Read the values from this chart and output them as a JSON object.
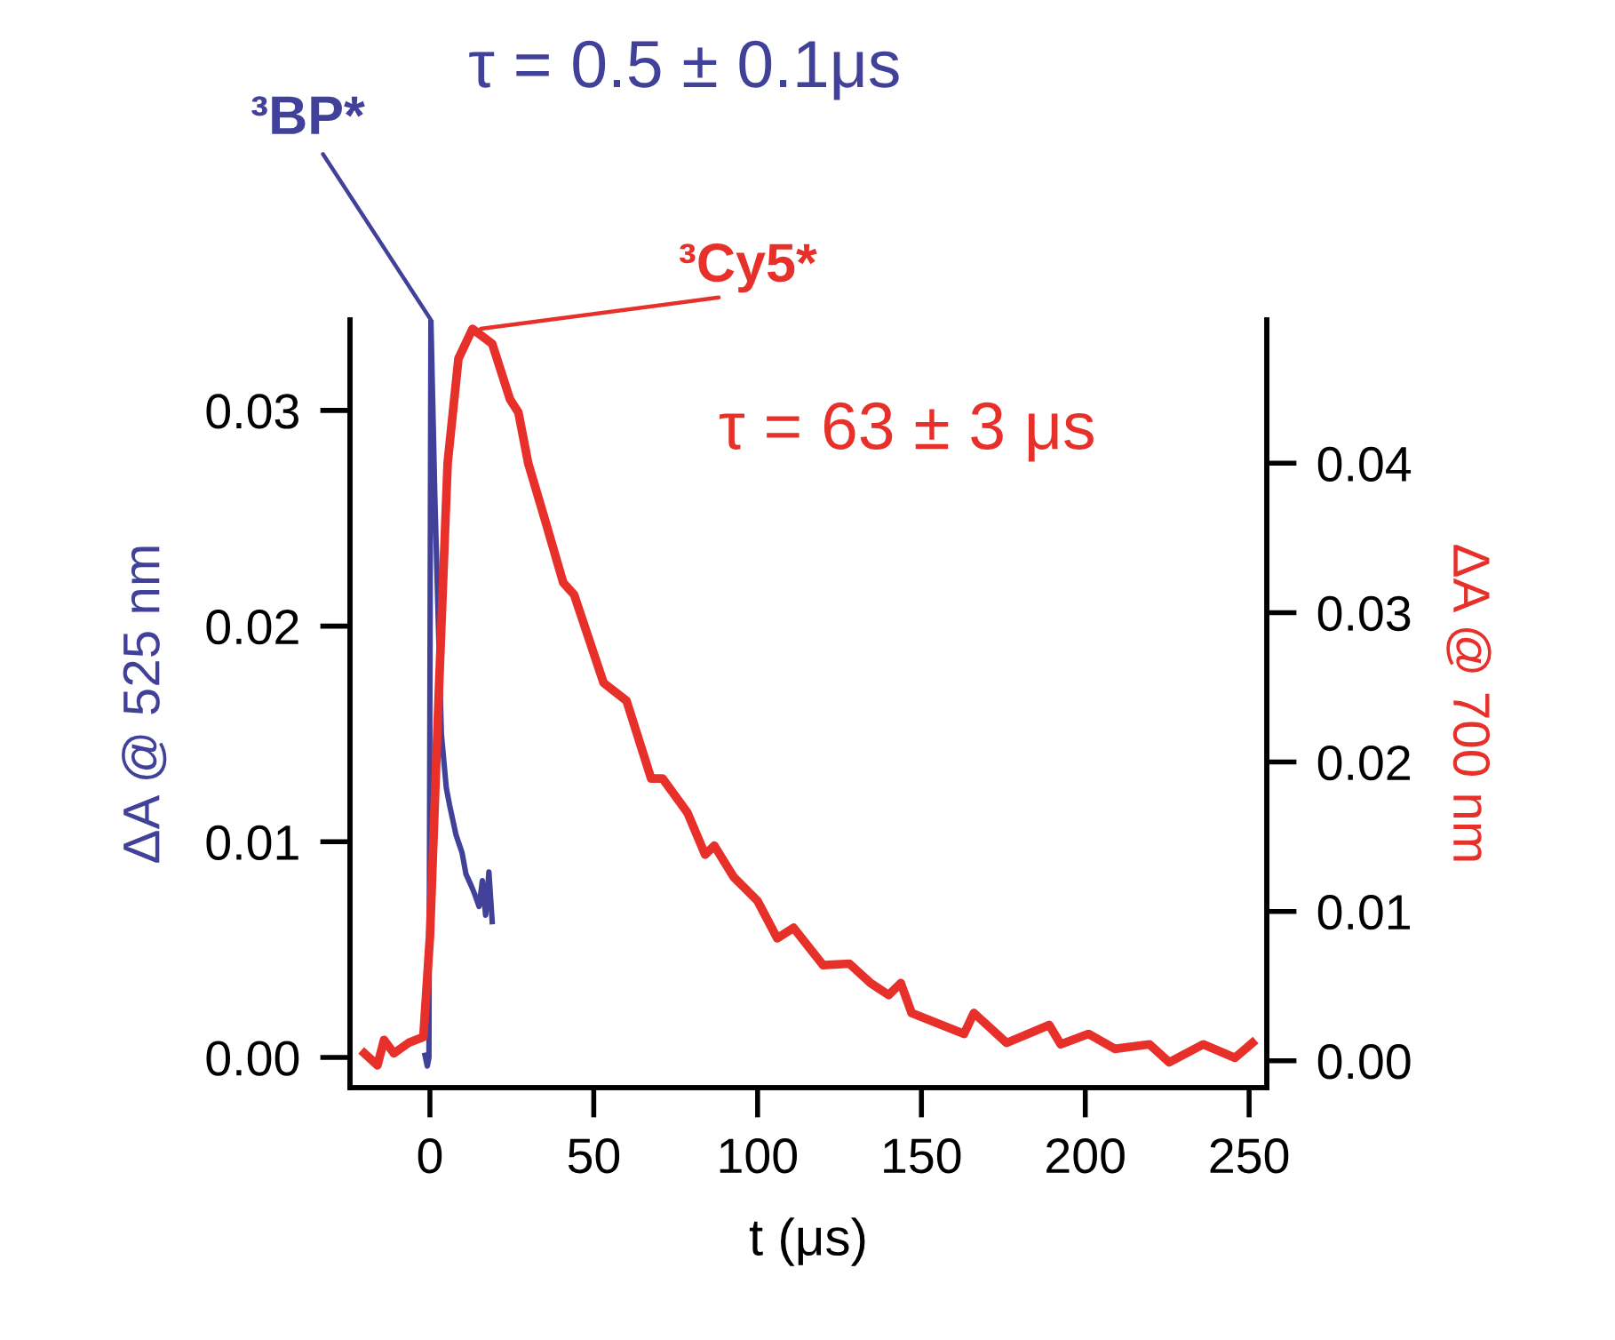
{
  "chart_data": {
    "type": "line",
    "xlabel": "t (μs)",
    "ylabel": "ΔA @ 525 nm",
    "y2label": "ΔA @ 700 nm",
    "annotations": [
      "τ = 0.5 ± 0.1μs",
      "τ = 63 ± 3 μs"
    ],
    "xlim": [
      -24.4,
      255.4
    ],
    "xticks": [
      0,
      50,
      100,
      150,
      200,
      250
    ],
    "ylim": [
      -0.0014,
      0.0342
    ],
    "yticks": [
      {
        "value": 0,
        "label": "0.00"
      },
      {
        "value": 0.01,
        "label": "0.01"
      },
      {
        "value": 0.02,
        "label": "0.02"
      },
      {
        "value": 0.03,
        "label": "0.03"
      }
    ],
    "y2lim": [
      -0.0018,
      0.0496
    ],
    "y2ticks": [
      {
        "value": 0,
        "label": "0.00"
      },
      {
        "value": 0.01,
        "label": "0.01"
      },
      {
        "value": 0.02,
        "label": "0.02"
      },
      {
        "value": 0.03,
        "label": "0.03"
      },
      {
        "value": 0.04,
        "label": "0.04"
      }
    ],
    "grid": false,
    "legend": false,
    "marker": "none",
    "line_style": "solid",
    "series": [
      {
        "name": "³BP*",
        "color": "#41419a",
        "x": [
          -1.5,
          -0.8,
          -0.3,
          0.3,
          1.5,
          2.7,
          3.5,
          5,
          6,
          8,
          9.8,
          11,
          12.5,
          13.6,
          15,
          16,
          17,
          18,
          19
        ],
        "values": [
          0.0001,
          -0.0004,
          0.0,
          0.0342,
          0.026,
          0.0194,
          0.015,
          0.0125,
          0.0117,
          0.0103,
          0.0095,
          0.0085,
          0.008,
          0.0076,
          0.007,
          0.0082,
          0.0066,
          0.0086,
          0.0063
        ]
      },
      {
        "name": "³Cy5*",
        "color": "#e8302a",
        "axis": "y2",
        "x": [
          -20,
          -16,
          -14,
          -11,
          -6.5,
          -2,
          0,
          2.6,
          5.4,
          8.7,
          13,
          19,
          24.4,
          27,
          30,
          35,
          40.7,
          44,
          53,
          60,
          67.5,
          71,
          78.6,
          84,
          86.8,
          92.7,
          100,
          106,
          111,
          120,
          128,
          134.5,
          140,
          143.7,
          147,
          163,
          166,
          176,
          189,
          192.5,
          201,
          209,
          219.6,
          225.6,
          236,
          245.7,
          251
        ],
        "values": [
          0.0005,
          -0.0003,
          0.0014,
          0.0005,
          0.0012,
          0.0016,
          0.0083,
          0.024,
          0.04,
          0.047,
          0.049,
          0.048,
          0.0443,
          0.0434,
          0.04,
          0.0363,
          0.032,
          0.0312,
          0.0253,
          0.0241,
          0.0189,
          0.0189,
          0.0166,
          0.0138,
          0.0144,
          0.0123,
          0.0107,
          0.0082,
          0.0089,
          0.0064,
          0.0065,
          0.0052,
          0.0044,
          0.0052,
          0.0032,
          0.0018,
          0.0032,
          0.0012,
          0.0024,
          0.0011,
          0.0018,
          0.0008,
          0.0011,
          -0.0001,
          0.0011,
          0.0002,
          0.0012
        ]
      }
    ]
  }
}
